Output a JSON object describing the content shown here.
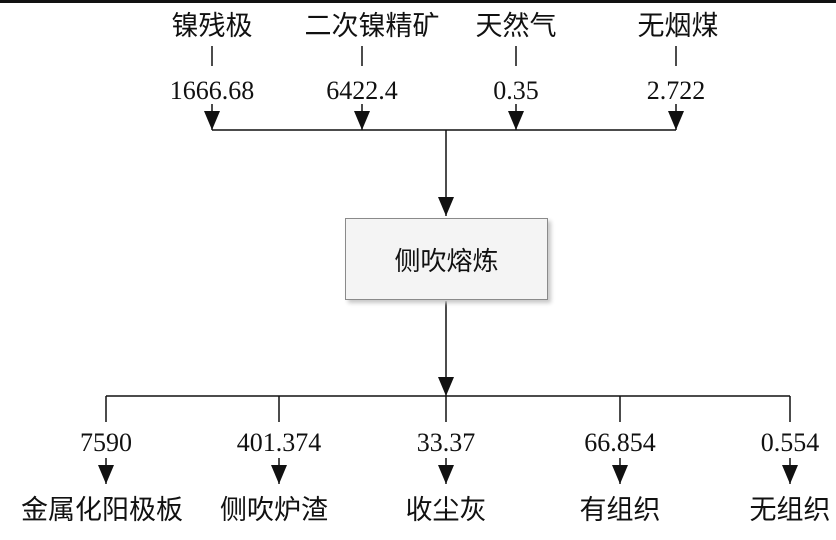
{
  "inputs": [
    {
      "name": "镍残极",
      "value": "1666.68"
    },
    {
      "name": "二次镍精矿",
      "value": "6422.4"
    },
    {
      "name": "天然气",
      "value": "0.35"
    },
    {
      "name": "无烟煤",
      "value": "2.722"
    }
  ],
  "process": {
    "label": "侧吹熔炼"
  },
  "outputs": [
    {
      "name": "金属化阳极板",
      "value": "7590"
    },
    {
      "name": "侧吹炉渣",
      "value": "401.374"
    },
    {
      "name": "收尘灰",
      "value": "33.37"
    },
    {
      "name": "有组织",
      "value": "66.854"
    },
    {
      "name": "无组织",
      "value": "0.554"
    }
  ]
}
